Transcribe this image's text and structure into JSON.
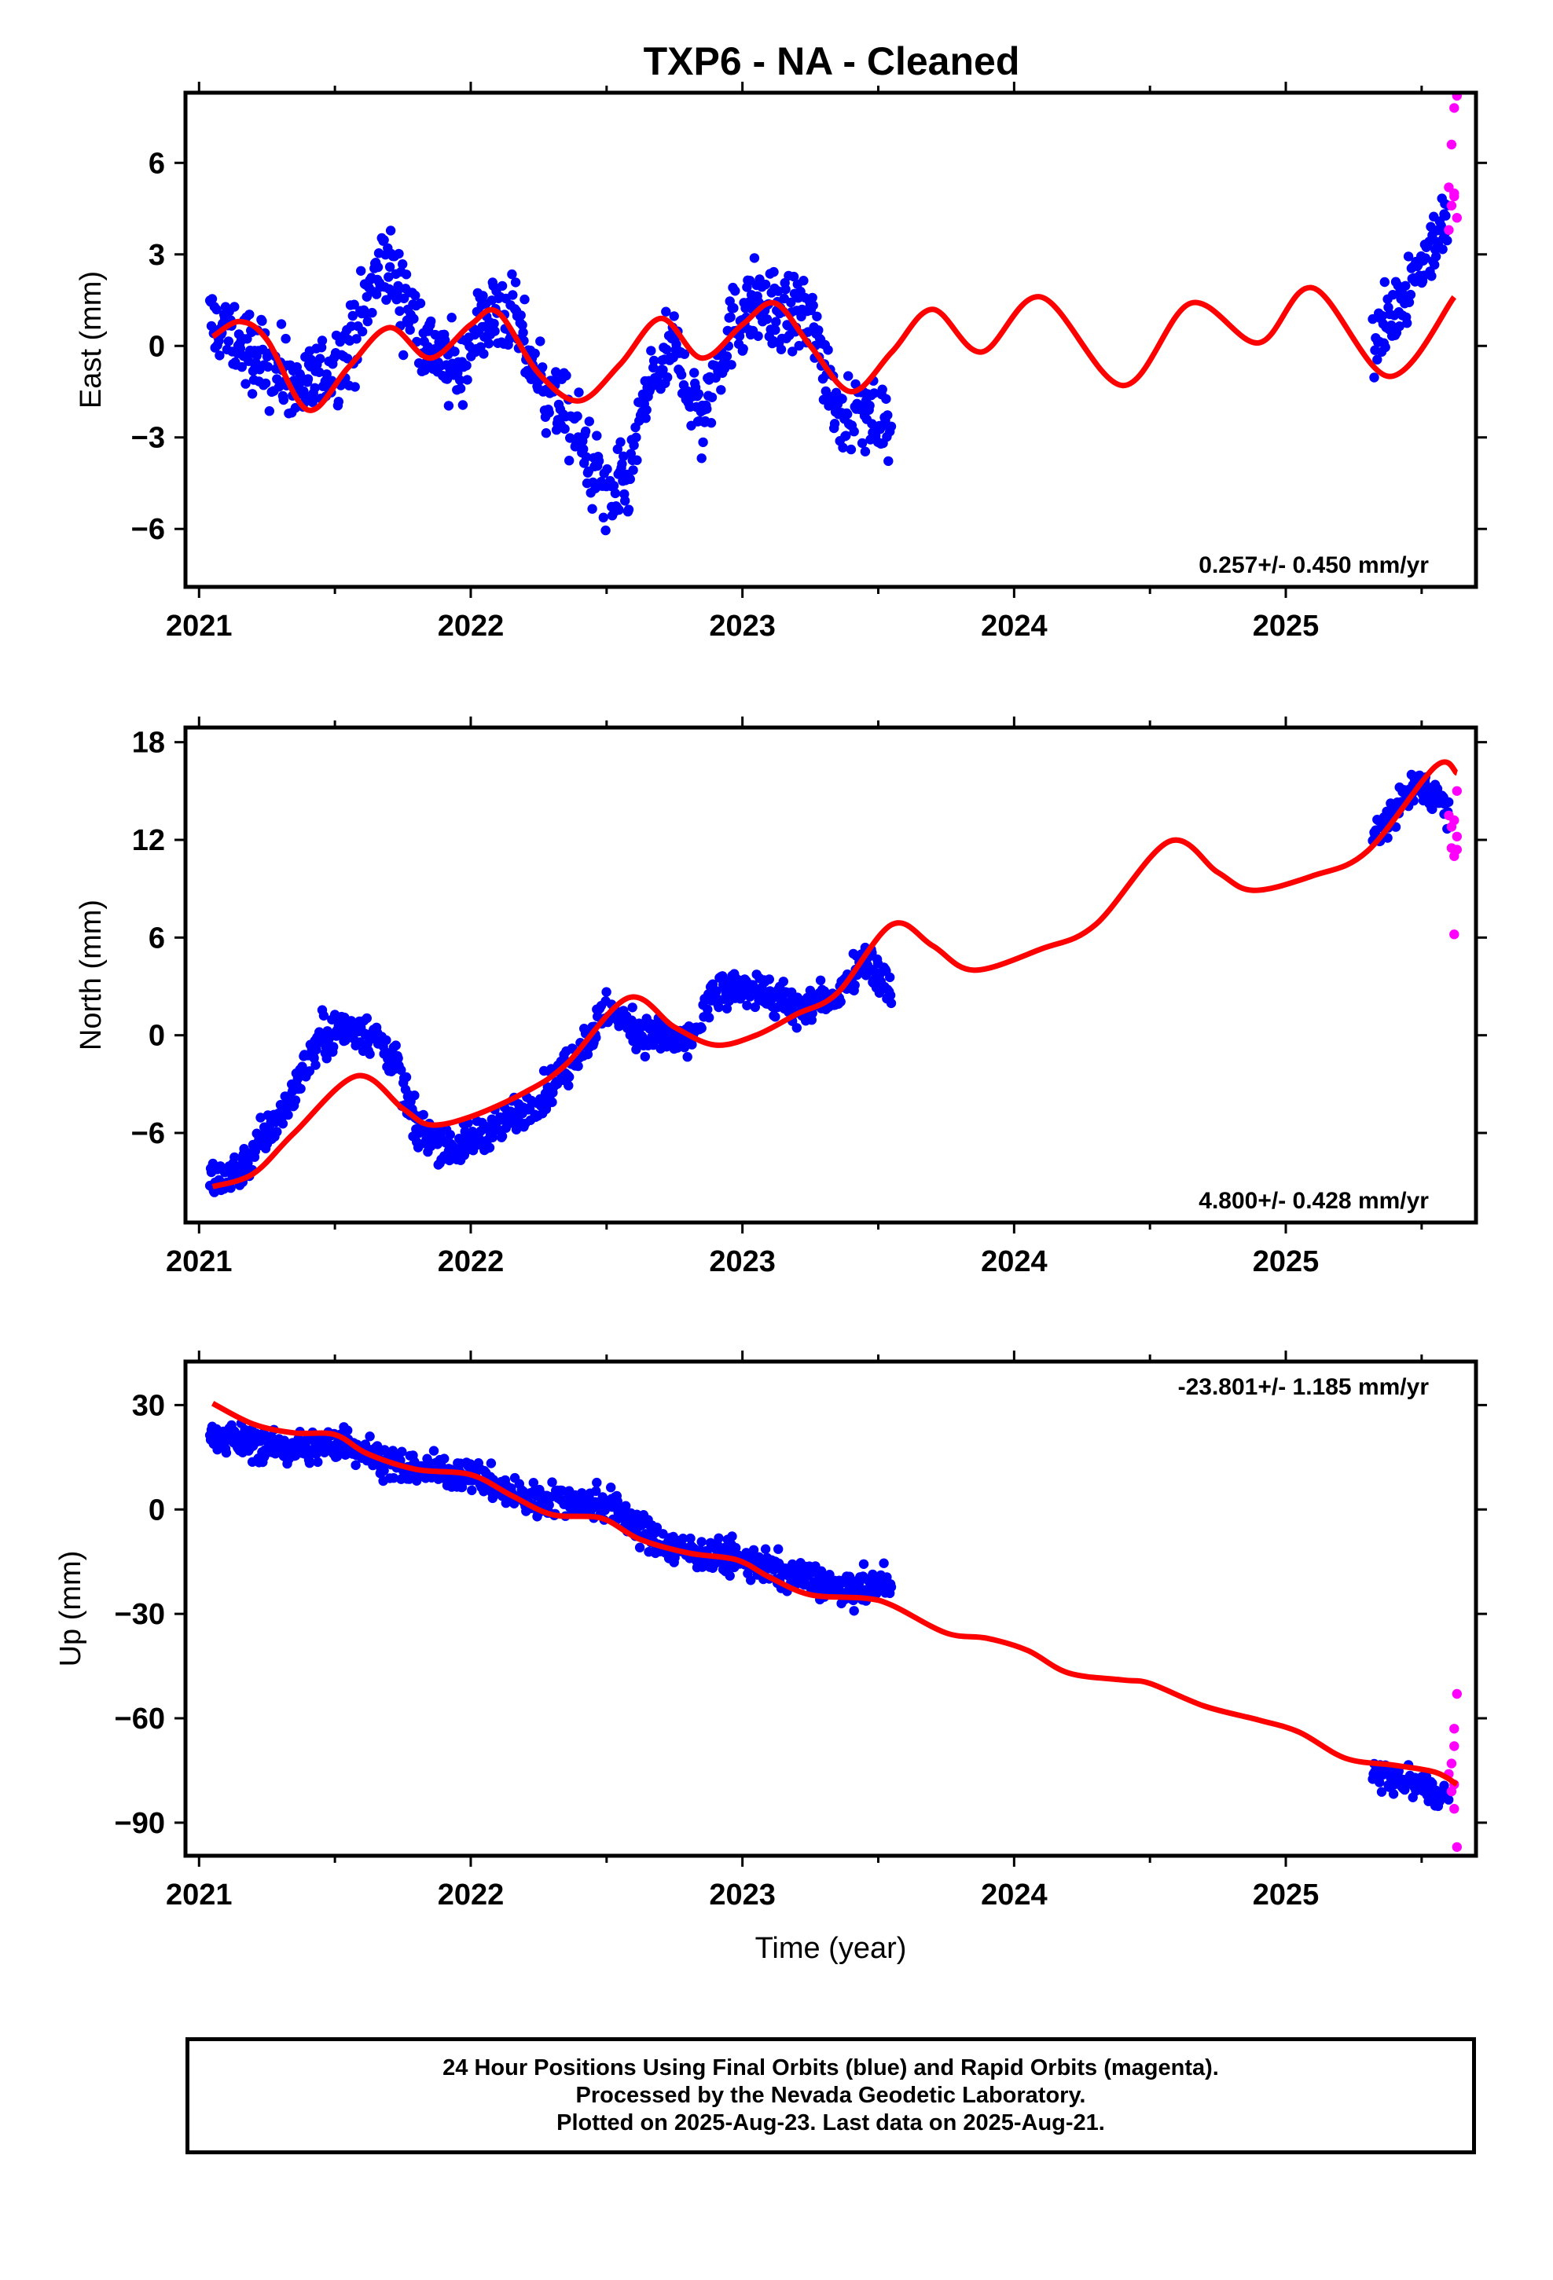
{
  "title": "TXP6  - NA - Cleaned",
  "colors": {
    "final": "#0000ff",
    "rapid": "#ff00ff",
    "model": "#ff0000",
    "frame": "#000000"
  },
  "chart_data": [
    {
      "type": "scatter",
      "panel": "east",
      "ylabel": "East (mm)",
      "ylim": [
        -7.9,
        8.3
      ],
      "yticks": [
        -6,
        -3,
        0,
        3,
        6
      ],
      "ytick_labels": [
        "−6",
        "−3",
        "0",
        "3",
        "6"
      ],
      "xlim": [
        2020.95,
        2025.7
      ],
      "xticks": [
        2021,
        2022,
        2023,
        2024,
        2025
      ],
      "xtick_labels": [
        "2021",
        "2022",
        "2023",
        "2024",
        "2025"
      ],
      "rate": "0.257+/- 0.450 mm/yr",
      "rate_pos": "bottom-right",
      "model": {
        "x": [
          2021.05,
          2021.15,
          2021.25,
          2021.4,
          2021.55,
          2021.7,
          2021.85,
          2022.0,
          2022.1,
          2022.25,
          2022.4,
          2022.55,
          2022.7,
          2022.85,
          2023.0,
          2023.12,
          2023.25,
          2023.4,
          2023.55,
          2023.7,
          2023.88,
          2024.1,
          2024.4,
          2024.65,
          2024.9,
          2025.1,
          2025.38,
          2025.62
        ],
        "y": [
          0.3,
          0.8,
          0.2,
          -2.1,
          -0.7,
          0.6,
          -0.4,
          0.7,
          1.1,
          -0.9,
          -1.8,
          -0.6,
          0.9,
          -0.4,
          0.7,
          1.4,
          0.0,
          -1.5,
          -0.2,
          1.2,
          -0.2,
          1.6,
          -1.3,
          1.4,
          0.1,
          1.9,
          -1.0,
          1.6
        ]
      },
      "final_segments": [
        {
          "t0": 2021.04,
          "t1": 2023.55,
          "knots": [
            [
              2021.04,
              0.8
            ],
            [
              2021.15,
              0.0
            ],
            [
              2021.4,
              -1.4
            ],
            [
              2021.55,
              -0.2
            ],
            [
              2021.68,
              2.8
            ],
            [
              2021.85,
              0.0
            ],
            [
              2021.95,
              -1.0
            ],
            [
              2022.05,
              1.0
            ],
            [
              2022.15,
              1.0
            ],
            [
              2022.25,
              -1.0
            ],
            [
              2022.4,
              -3.0
            ],
            [
              2022.5,
              -5.0
            ],
            [
              2022.58,
              -4.5
            ],
            [
              2022.65,
              -1.5
            ],
            [
              2022.75,
              0.0
            ],
            [
              2022.85,
              -2.5
            ],
            [
              2022.95,
              0.5
            ],
            [
              2023.05,
              1.5
            ],
            [
              2023.15,
              1.0
            ],
            [
              2023.25,
              1.0
            ],
            [
              2023.35,
              -2.0
            ],
            [
              2023.55,
              -2.5
            ]
          ],
          "noise": 1.1
        },
        {
          "t0": 2025.32,
          "t1": 2025.6,
          "knots": [
            [
              2025.32,
              -0.2
            ],
            [
              2025.45,
              2.0
            ],
            [
              2025.6,
              4.2
            ]
          ],
          "noise": 1.0
        }
      ],
      "rapid_points": [
        [
          2025.6,
          5.2
        ],
        [
          2025.6,
          3.8
        ],
        [
          2025.61,
          4.6
        ],
        [
          2025.61,
          6.6
        ],
        [
          2025.62,
          7.8
        ],
        [
          2025.62,
          4.9
        ],
        [
          2025.63,
          8.2
        ],
        [
          2025.63,
          4.2
        ],
        [
          2025.62,
          5.0
        ]
      ]
    },
    {
      "type": "scatter",
      "panel": "north",
      "ylabel": "North (mm)",
      "ylim": [
        -11.5,
        18.9
      ],
      "yticks": [
        -6,
        0,
        6,
        12,
        18
      ],
      "ytick_labels": [
        "−6",
        "0",
        "6",
        "12",
        "18"
      ],
      "xlim": [
        2020.95,
        2025.7
      ],
      "xticks": [
        2021,
        2022,
        2023,
        2024,
        2025
      ],
      "xtick_labels": [
        "2021",
        "2022",
        "2023",
        "2024",
        "2025"
      ],
      "rate": "4.800+/- 0.428 mm/yr",
      "rate_pos": "bottom-right",
      "model": {
        "x": [
          2021.05,
          2021.2,
          2021.35,
          2021.58,
          2021.75,
          2021.85,
          2022.0,
          2022.2,
          2022.35,
          2022.58,
          2022.75,
          2022.9,
          2023.05,
          2023.2,
          2023.35,
          2023.55,
          2023.7,
          2023.85,
          2024.1,
          2024.3,
          2024.57,
          2024.75,
          2024.88,
          2025.1,
          2025.3,
          2025.55,
          2025.63
        ],
        "y": [
          -9.3,
          -8.5,
          -6.0,
          -2.5,
          -4.5,
          -5.5,
          -5.0,
          -3.5,
          -1.8,
          2.3,
          0.5,
          -0.6,
          0.0,
          1.3,
          2.6,
          6.8,
          5.5,
          4.0,
          5.3,
          6.8,
          11.9,
          10.0,
          8.9,
          9.8,
          11.3,
          16.5,
          16.1
        ]
      },
      "final_segments": [
        {
          "t0": 2021.04,
          "t1": 2023.55,
          "knots": [
            [
              2021.04,
              -9.0
            ],
            [
              2021.15,
              -8.2
            ],
            [
              2021.3,
              -5.0
            ],
            [
              2021.45,
              0.0
            ],
            [
              2021.6,
              0.5
            ],
            [
              2021.72,
              -1.5
            ],
            [
              2021.8,
              -5.8
            ],
            [
              2021.95,
              -7.0
            ],
            [
              2022.1,
              -5.5
            ],
            [
              2022.25,
              -4.0
            ],
            [
              2022.35,
              -2.0
            ],
            [
              2022.5,
              1.5
            ],
            [
              2022.65,
              0.0
            ],
            [
              2022.8,
              -0.5
            ],
            [
              2022.9,
              2.5
            ],
            [
              2023.05,
              3.0
            ],
            [
              2023.2,
              1.5
            ],
            [
              2023.35,
              2.5
            ],
            [
              2023.45,
              5.0
            ],
            [
              2023.55,
              2.5
            ]
          ],
          "noise": 1.0
        },
        {
          "t0": 2025.32,
          "t1": 2025.6,
          "knots": [
            [
              2025.32,
              12.0
            ],
            [
              2025.48,
              15.5
            ],
            [
              2025.6,
              14.0
            ]
          ],
          "noise": 0.9
        }
      ],
      "rapid_points": [
        [
          2025.6,
          13.5
        ],
        [
          2025.61,
          11.5
        ],
        [
          2025.61,
          12.8
        ],
        [
          2025.62,
          11.0
        ],
        [
          2025.62,
          13.2
        ],
        [
          2025.63,
          12.2
        ],
        [
          2025.63,
          15.0
        ],
        [
          2025.63,
          11.4
        ],
        [
          2025.62,
          6.2
        ]
      ]
    },
    {
      "type": "scatter",
      "panel": "up",
      "ylabel": "Up (mm)",
      "ylim": [
        -99.5,
        42.5
      ],
      "yticks": [
        -90,
        -60,
        -30,
        0,
        30
      ],
      "ytick_labels": [
        "−90",
        "−60",
        "−30",
        "0",
        "30"
      ],
      "xlim": [
        2020.95,
        2025.7
      ],
      "xticks": [
        2021,
        2022,
        2023,
        2024,
        2025
      ],
      "xtick_labels": [
        "2021",
        "2022",
        "2023",
        "2024",
        "2025"
      ],
      "rate": "-23.801+/- 1.185 mm/yr",
      "rate_pos": "top-right",
      "xlabel": "Time (year)",
      "model": {
        "x": [
          2021.05,
          2021.2,
          2021.35,
          2021.5,
          2021.62,
          2021.8,
          2022.0,
          2022.15,
          2022.3,
          2022.48,
          2022.62,
          2022.8,
          2022.98,
          2023.1,
          2023.25,
          2023.45,
          2023.55,
          2023.75,
          2023.9,
          2024.05,
          2024.2,
          2024.4,
          2024.5,
          2024.7,
          2024.9,
          2025.05,
          2025.22,
          2025.4,
          2025.55,
          2025.63
        ],
        "y": [
          30.5,
          24.5,
          22.0,
          21.5,
          16.0,
          11.5,
          10.0,
          4.0,
          -1.5,
          -2.5,
          -8.5,
          -12.5,
          -14.5,
          -19.5,
          -24.5,
          -25.5,
          -27.5,
          -35.5,
          -37.0,
          -40.5,
          -47.0,
          -49.0,
          -50.0,
          -56.5,
          -60.5,
          -64.0,
          -71.5,
          -73.5,
          -75.5,
          -79.0
        ]
      },
      "final_segments": [
        {
          "t0": 2021.04,
          "t1": 2023.55,
          "knots": [
            [
              2021.04,
              22.0
            ],
            [
              2021.3,
              17.0
            ],
            [
              2021.55,
              19.0
            ],
            [
              2021.75,
              12.0
            ],
            [
              2022.0,
              10.0
            ],
            [
              2022.2,
              3.0
            ],
            [
              2022.5,
              2.0
            ],
            [
              2022.7,
              -10.0
            ],
            [
              2022.95,
              -14.0
            ],
            [
              2023.15,
              -18.0
            ],
            [
              2023.4,
              -24.0
            ],
            [
              2023.55,
              -20.0
            ]
          ],
          "noise": 4.0
        },
        {
          "t0": 2025.32,
          "t1": 2025.6,
          "knots": [
            [
              2025.32,
              -76.0
            ],
            [
              2025.45,
              -78.0
            ],
            [
              2025.6,
              -83.0
            ]
          ],
          "noise": 3.5
        }
      ],
      "rapid_points": [
        [
          2025.6,
          -76.0
        ],
        [
          2025.61,
          -73.0
        ],
        [
          2025.61,
          -81.0
        ],
        [
          2025.62,
          -63.0
        ],
        [
          2025.62,
          -86.0
        ],
        [
          2025.63,
          -53.0
        ],
        [
          2025.63,
          -97.0
        ],
        [
          2025.62,
          -68.0
        ],
        [
          2025.62,
          -79.0
        ]
      ]
    }
  ],
  "footer": {
    "line1": "24 Hour Positions Using Final Orbits (blue) and Rapid Orbits (magenta).",
    "line2": "Processed by the Nevada Geodetic Laboratory.",
    "line3": "Plotted on 2025-Aug-23. Last data on 2025-Aug-21."
  }
}
